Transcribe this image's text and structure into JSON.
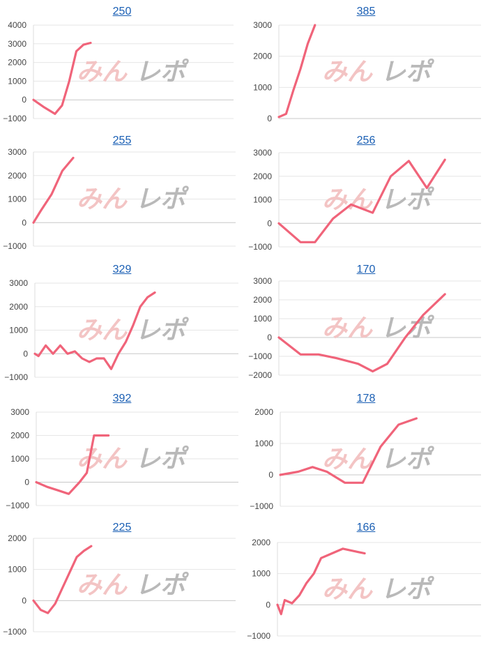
{
  "watermark": {
    "part_a": "みん",
    "part_b": "レポ"
  },
  "colors": {
    "line": "#f0647a",
    "title_link": "#1a5fb4"
  },
  "chart_data": [
    {
      "type": "line",
      "title": "250",
      "ylim": [
        -1000,
        4000
      ],
      "yticks": [
        -1000,
        0,
        1000,
        2000,
        3000,
        4000
      ],
      "x": [
        0,
        3,
        6,
        8,
        10,
        12,
        14,
        16
      ],
      "values": [
        0,
        -400,
        -750,
        -300,
        1000,
        2600,
        2950,
        3050
      ]
    },
    {
      "type": "line",
      "title": "385",
      "ylim": [
        0,
        3000
      ],
      "yticks": [
        0,
        1000,
        2000,
        3000
      ],
      "x": [
        0,
        2,
        4,
        6,
        8,
        10
      ],
      "values": [
        50,
        150,
        900,
        1600,
        2400,
        3000
      ]
    },
    {
      "type": "line",
      "title": "255",
      "ylim": [
        -1000,
        3000
      ],
      "yticks": [
        -1000,
        0,
        1000,
        2000,
        3000
      ],
      "x": [
        0,
        2,
        5,
        8,
        11
      ],
      "values": [
        0,
        500,
        1200,
        2200,
        2750
      ]
    },
    {
      "type": "line",
      "title": "256",
      "ylim": [
        -1000,
        3000
      ],
      "yticks": [
        -1000,
        0,
        1000,
        2000,
        3000
      ],
      "x": [
        0,
        6,
        10,
        15,
        20,
        26,
        31,
        36,
        41,
        46
      ],
      "values": [
        0,
        -800,
        -800,
        200,
        800,
        450,
        2000,
        2650,
        1500,
        2700
      ]
    },
    {
      "type": "line",
      "title": "329",
      "ylim": [
        -1000,
        3000
      ],
      "yticks": [
        -1000,
        0,
        1000,
        2000,
        3000
      ],
      "x": [
        0,
        1,
        3,
        5,
        7,
        9,
        11,
        13,
        15,
        17,
        19,
        21,
        23,
        25,
        27,
        29,
        31,
        33
      ],
      "values": [
        0,
        -100,
        350,
        0,
        350,
        0,
        100,
        -200,
        -350,
        -200,
        -200,
        -650,
        0,
        500,
        1200,
        2000,
        2400,
        2600
      ]
    },
    {
      "type": "line",
      "title": "170",
      "ylim": [
        -2000,
        3000
      ],
      "yticks": [
        -2000,
        -1000,
        0,
        1000,
        2000,
        3000
      ],
      "x": [
        0,
        6,
        11,
        16,
        22,
        26,
        30,
        35,
        40,
        46
      ],
      "values": [
        0,
        -900,
        -900,
        -1100,
        -1400,
        -1800,
        -1400,
        0,
        1200,
        2300
      ]
    },
    {
      "type": "line",
      "title": "392",
      "ylim": [
        -1000,
        3000
      ],
      "yticks": [
        -1000,
        0,
        1000,
        2000,
        3000
      ],
      "x": [
        0,
        3,
        6,
        9,
        12,
        14,
        16,
        18,
        20
      ],
      "values": [
        0,
        -200,
        -350,
        -500,
        0,
        400,
        2000,
        2000,
        2000
      ]
    },
    {
      "type": "line",
      "title": "178",
      "ylim": [
        -1000,
        2000
      ],
      "yticks": [
        -1000,
        0,
        1000,
        2000
      ],
      "x": [
        0,
        5,
        9,
        13,
        18,
        23,
        28,
        33,
        38
      ],
      "values": [
        0,
        100,
        250,
        100,
        -250,
        -250,
        900,
        1600,
        1800
      ]
    },
    {
      "type": "line",
      "title": "225",
      "ylim": [
        -1000,
        2000
      ],
      "yticks": [
        -1000,
        0,
        1000,
        2000
      ],
      "x": [
        0,
        2,
        4,
        6,
        8,
        10,
        12,
        14,
        16
      ],
      "values": [
        0,
        -300,
        -400,
        -100,
        400,
        900,
        1400,
        1600,
        1750
      ]
    },
    {
      "type": "line",
      "title": "166",
      "ylim": [
        -1000,
        2000
      ],
      "yticks": [
        -1000,
        0,
        1000,
        2000
      ],
      "x": [
        0,
        1,
        2,
        4,
        6,
        8,
        10,
        12,
        14,
        16,
        18,
        20,
        22,
        24
      ],
      "values": [
        0,
        -300,
        150,
        50,
        300,
        700,
        1000,
        1500,
        1600,
        1700,
        1800,
        1750,
        1700,
        1650
      ]
    }
  ]
}
